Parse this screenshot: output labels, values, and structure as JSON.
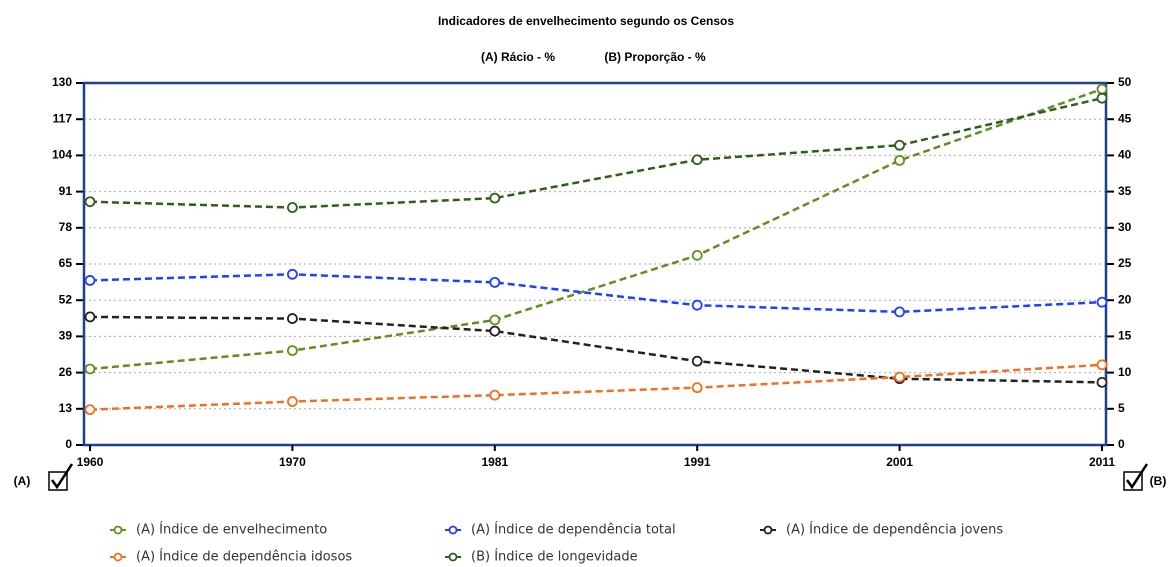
{
  "chart_data": {
    "type": "line",
    "title": "Indicadores de envelhecimento segundo os Censos",
    "subtitle_a": "(A) Rácio - %",
    "subtitle_b": "(B) Proporção - %",
    "left_axis_label": "(A)",
    "right_axis_label": "(B)",
    "categories": [
      "1960",
      "1970",
      "1981",
      "1991",
      "2001",
      "2011"
    ],
    "ylim": [
      0,
      130
    ],
    "yticks": [
      0,
      13,
      26,
      39,
      52,
      65,
      78,
      91,
      104,
      117,
      130
    ],
    "y2lim": [
      0,
      50
    ],
    "y2ticks": [
      0,
      5,
      10,
      15,
      20,
      25,
      30,
      35,
      40,
      45,
      50
    ],
    "grid": true,
    "series": [
      {
        "name": "(A) Índice de envelhecimento",
        "color": "#5f8f1f",
        "values": [
          27.3,
          33.9,
          44.9,
          68.1,
          102.2,
          127.8
        ]
      },
      {
        "name": "(A) Índice de dependência total",
        "color": "#1f3fff",
        "values": [
          59.1,
          61.3,
          58.4,
          50.2,
          47.8,
          51.3
        ]
      },
      {
        "name": "(A) Índice de dependência jovens",
        "color": "#222222",
        "values": [
          46.0,
          45.4,
          40.9,
          30.1,
          23.8,
          22.5
        ]
      },
      {
        "name": "(A) Índice de dependência idosos",
        "color": "#f07020",
        "values": [
          12.7,
          15.6,
          17.9,
          20.6,
          24.4,
          28.8
        ]
      },
      {
        "name": "(B) Índice de longevidade",
        "color": "#2e5e1a",
        "axis": "y2",
        "values": [
          33.6,
          32.8,
          34.1,
          39.4,
          41.4,
          47.9
        ]
      }
    ]
  }
}
